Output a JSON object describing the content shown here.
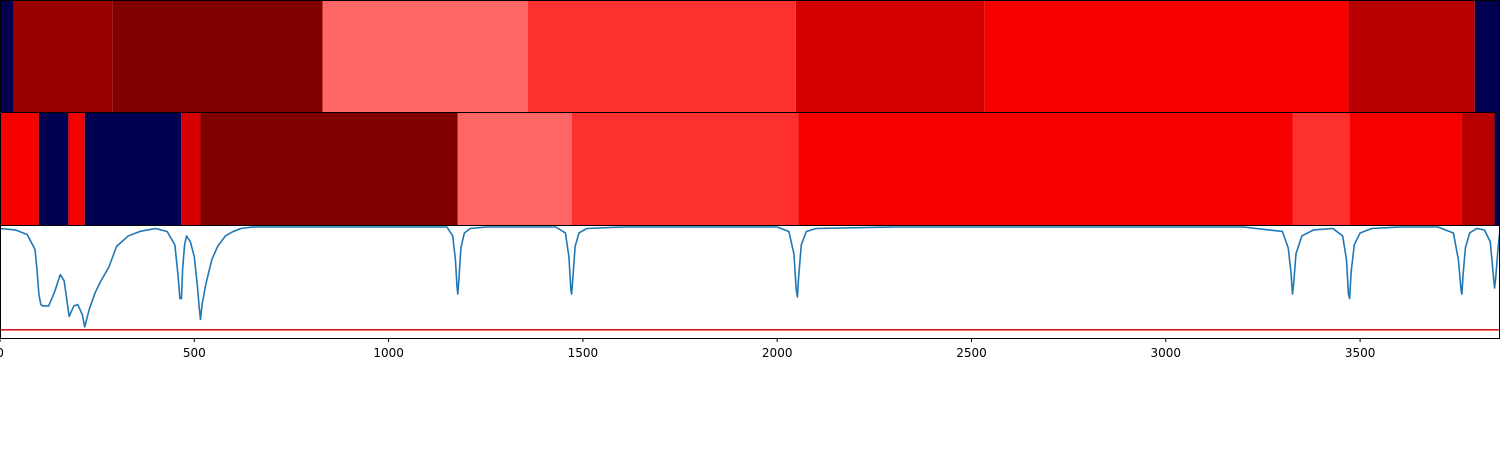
{
  "chart_data": [
    {
      "type": "heatmap",
      "title": "",
      "xlim": [
        0,
        3860
      ],
      "segments": [
        {
          "x0": 0,
          "x1": 35,
          "color": "#000050"
        },
        {
          "x0": 35,
          "x1": 290,
          "color": "#9a0000"
        },
        {
          "x0": 290,
          "x1": 830,
          "color": "#800000"
        },
        {
          "x0": 830,
          "x1": 1358,
          "color": "#ff6666"
        },
        {
          "x0": 1358,
          "x1": 2048,
          "color": "#ff3030"
        },
        {
          "x0": 2048,
          "x1": 2534,
          "color": "#d60000"
        },
        {
          "x0": 2534,
          "x1": 3470,
          "color": "#f60000"
        },
        {
          "x0": 3470,
          "x1": 3795,
          "color": "#b80000"
        },
        {
          "x0": 3795,
          "x1": 3860,
          "color": "#000050"
        }
      ]
    },
    {
      "type": "heatmap",
      "title": "",
      "xlim": [
        0,
        3860
      ],
      "segments": [
        {
          "x0": 0,
          "x1": 100,
          "color": "#f60000"
        },
        {
          "x0": 100,
          "x1": 176,
          "color": "#000050"
        },
        {
          "x0": 176,
          "x1": 218,
          "color": "#f60000"
        },
        {
          "x0": 218,
          "x1": 466,
          "color": "#000050"
        },
        {
          "x0": 466,
          "x1": 516,
          "color": "#d60000"
        },
        {
          "x0": 516,
          "x1": 1178,
          "color": "#800000"
        },
        {
          "x0": 1178,
          "x1": 1471,
          "color": "#ff6666"
        },
        {
          "x0": 1471,
          "x1": 2054,
          "color": "#ff3030"
        },
        {
          "x0": 2054,
          "x1": 3326,
          "color": "#f60000"
        },
        {
          "x0": 3326,
          "x1": 3474,
          "color": "#ff3030"
        },
        {
          "x0": 3474,
          "x1": 3762,
          "color": "#f60000"
        },
        {
          "x0": 3762,
          "x1": 3846,
          "color": "#b80000"
        },
        {
          "x0": 3846,
          "x1": 3860,
          "color": "#000050"
        }
      ]
    },
    {
      "type": "line",
      "xlabel": "",
      "ylabel": "",
      "xlim": [
        0,
        3860
      ],
      "ylim": [
        0,
        1
      ],
      "xticks": [
        0,
        500,
        1000,
        1500,
        2000,
        2500,
        3000,
        3500
      ],
      "xtick_labels": [
        "0",
        "500",
        "1000",
        "1500",
        "2000",
        "2500",
        "3000",
        "3500"
      ],
      "grid": false,
      "series": [
        {
          "color": "#1f77b4",
          "x": [
            0,
            40,
            70,
            90,
            95,
            100,
            105,
            110,
            125,
            140,
            155,
            165,
            178,
            190,
            200,
            212,
            218,
            230,
            245,
            260,
            280,
            300,
            330,
            360,
            400,
            430,
            450,
            458,
            463,
            467,
            470,
            475,
            480,
            490,
            500,
            508,
            513,
            516,
            520,
            530,
            545,
            560,
            580,
            600,
            620,
            650,
            700,
            800,
            900,
            1000,
            1100,
            1150,
            1165,
            1172,
            1176,
            1178,
            1181,
            1186,
            1195,
            1210,
            1250,
            1350,
            1430,
            1455,
            1464,
            1469,
            1471,
            1474,
            1480,
            1490,
            1510,
            1600,
            1800,
            2000,
            2030,
            2043,
            2049,
            2052,
            2055,
            2062,
            2075,
            2100,
            2300,
            2600,
            2900,
            3200,
            3300,
            3315,
            3322,
            3326,
            3329,
            3335,
            3350,
            3380,
            3430,
            3455,
            3465,
            3470,
            3473,
            3477,
            3485,
            3500,
            3530,
            3600,
            3700,
            3740,
            3753,
            3760,
            3762,
            3765,
            3771,
            3782,
            3800,
            3820,
            3835,
            3842,
            3846,
            3849,
            3855,
            3860
          ],
          "y": [
            0.99,
            0.98,
            0.95,
            0.85,
            0.72,
            0.55,
            0.48,
            0.47,
            0.47,
            0.56,
            0.68,
            0.64,
            0.4,
            0.47,
            0.48,
            0.41,
            0.33,
            0.45,
            0.56,
            0.64,
            0.73,
            0.87,
            0.94,
            0.97,
            0.99,
            0.97,
            0.88,
            0.68,
            0.52,
            0.52,
            0.72,
            0.88,
            0.94,
            0.9,
            0.8,
            0.6,
            0.45,
            0.38,
            0.48,
            0.62,
            0.78,
            0.87,
            0.94,
            0.97,
            0.99,
            1.0,
            1.0,
            1.0,
            1.0,
            1.0,
            1.0,
            1.0,
            0.94,
            0.78,
            0.6,
            0.55,
            0.65,
            0.86,
            0.96,
            0.99,
            1.0,
            1.0,
            1.0,
            0.96,
            0.8,
            0.58,
            0.55,
            0.65,
            0.87,
            0.96,
            0.99,
            1.0,
            1.0,
            1.0,
            0.97,
            0.82,
            0.58,
            0.53,
            0.66,
            0.88,
            0.97,
            0.99,
            1.0,
            1.0,
            1.0,
            1.0,
            0.97,
            0.86,
            0.7,
            0.55,
            0.62,
            0.82,
            0.94,
            0.98,
            0.99,
            0.94,
            0.78,
            0.55,
            0.52,
            0.7,
            0.88,
            0.96,
            0.99,
            1.0,
            1.0,
            0.96,
            0.78,
            0.57,
            0.55,
            0.68,
            0.86,
            0.96,
            0.99,
            0.98,
            0.9,
            0.7,
            0.59,
            0.66,
            0.86,
            0.98
          ]
        },
        {
          "color": "#e31a1c",
          "x": [
            0,
            3860
          ],
          "y": [
            0.31,
            0.31
          ]
        }
      ]
    }
  ]
}
